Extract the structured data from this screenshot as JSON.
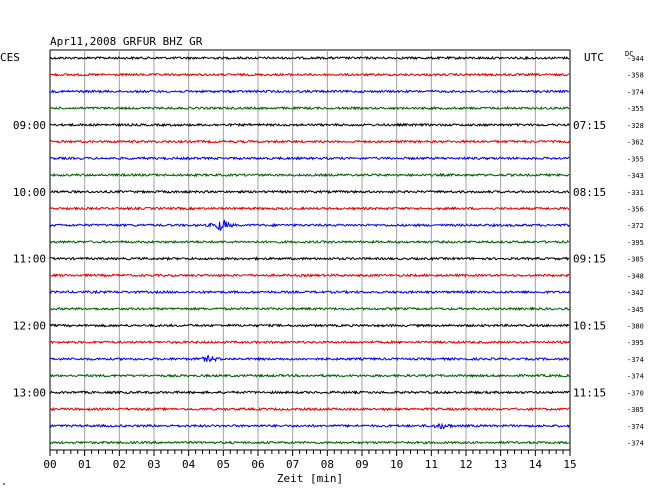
{
  "header": {
    "title": "Apr11,2008   GRFUR BHZ GR",
    "left_zone": "CES",
    "right_zone": "UTC",
    "dc_label": "DC",
    "corner_mark": "\""
  },
  "chart_data": {
    "type": "line",
    "title": "Apr11,2008   GRFUR BHZ GR",
    "xlabel": "Zeit [min]",
    "ylabel": "",
    "xlim": [
      0,
      15
    ],
    "x_ticks": [
      "00",
      "01",
      "02",
      "03",
      "04",
      "05",
      "06",
      "07",
      "08",
      "09",
      "10",
      "11",
      "12",
      "13",
      "14",
      "15"
    ],
    "grid": true,
    "trace_colors": [
      "#000000",
      "#e00000",
      "#0000e0",
      "#006000"
    ],
    "left_time_labels": [
      {
        "trace": 4,
        "label": "09:00"
      },
      {
        "trace": 8,
        "label": "10:00"
      },
      {
        "trace": 12,
        "label": "11:00"
      },
      {
        "trace": 16,
        "label": "12:00"
      },
      {
        "trace": 20,
        "label": "13:00"
      }
    ],
    "right_time_labels": [
      {
        "trace": 4,
        "label": "07:15"
      },
      {
        "trace": 8,
        "label": "08:15"
      },
      {
        "trace": 12,
        "label": "09:15"
      },
      {
        "trace": 16,
        "label": "10:15"
      },
      {
        "trace": 20,
        "label": "11:15"
      }
    ],
    "dc_offsets": [
      "-344",
      "-358",
      "-374",
      "-355",
      "-328",
      "-362",
      "-355",
      "-343",
      "-331",
      "-356",
      "-372",
      "-395",
      "-385",
      "-348",
      "-342",
      "-345",
      "-380",
      "-395",
      "-374",
      "-374",
      "-370",
      "-385",
      "-374",
      "-374"
    ],
    "events": [
      {
        "trace": 10,
        "minute": 4.95,
        "amplitude": 4.5
      },
      {
        "trace": 18,
        "minute": 4.6,
        "amplitude": 2.2
      },
      {
        "trace": 22,
        "minute": 11.3,
        "amplitude": 2.0
      }
    ]
  }
}
